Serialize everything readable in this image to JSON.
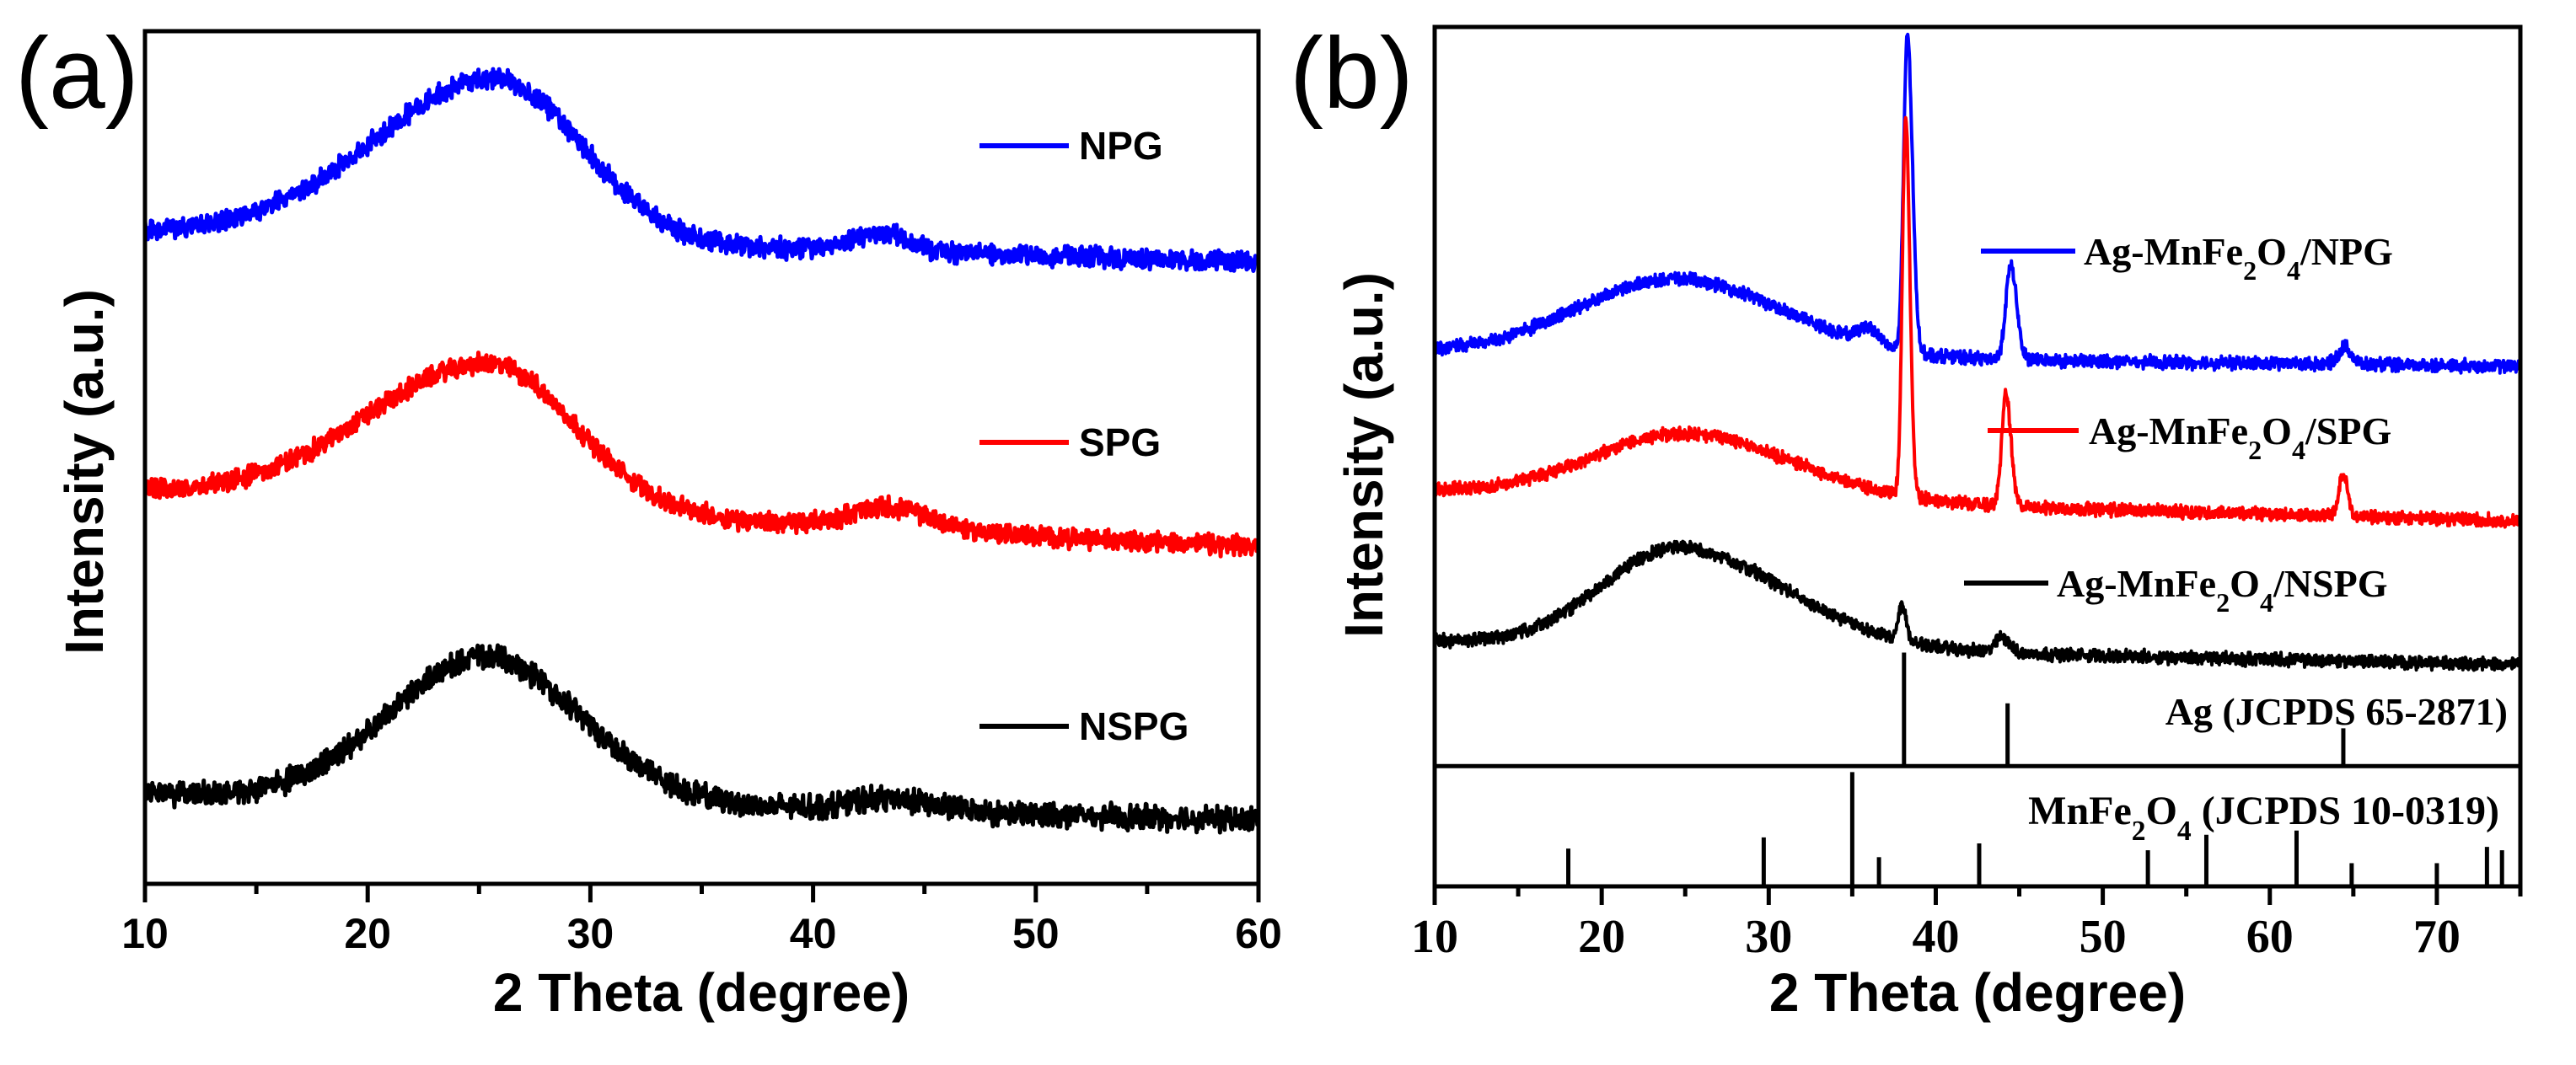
{
  "chart_data": [
    {
      "type": "line",
      "panel_label": "(a)",
      "title": "",
      "xlabel": "2 Theta (degree)",
      "ylabel": "Intensity (a.u.)",
      "xlim": [
        10,
        60
      ],
      "ylim": [
        0,
        100
      ],
      "xticks": [
        10,
        20,
        30,
        40,
        50,
        60
      ],
      "xtick_labels": [
        "10",
        "20",
        "30",
        "40",
        "50",
        "60"
      ],
      "grid": false,
      "legend_placement": "right, inline with each curve",
      "series": [
        {
          "name": "NPG",
          "color": "#0000ff",
          "baseline": [
            76.5,
            73
          ],
          "noise": 1.4,
          "seed": 11,
          "peaks": [
            {
              "center": 25.8,
              "amp": 19,
              "sigma_left": 5.5,
              "sigma_right": 3.8
            },
            {
              "center": 43,
              "amp": 2.2,
              "sigma_left": 1.2,
              "sigma_right": 1.2
            }
          ]
        },
        {
          "name": "SPG",
          "color": "#ff0000",
          "baseline": [
            46,
            39.5
          ],
          "noise": 1.4,
          "seed": 23,
          "peaks": [
            {
              "center": 25.5,
              "amp": 17,
              "sigma_left": 5.5,
              "sigma_right": 3.8
            },
            {
              "center": 43.5,
              "amp": 2.5,
              "sigma_left": 1.8,
              "sigma_right": 1.8
            }
          ]
        },
        {
          "name": "NSPG",
          "color": "#000000",
          "baseline": [
            10.5,
            7.5
          ],
          "noise": 1.7,
          "seed": 37,
          "peaks": [
            {
              "center": 25.3,
              "amp": 17,
              "sigma_left": 4.3,
              "sigma_right": 4.3
            },
            {
              "center": 43.5,
              "amp": 1.5,
              "sigma_left": 2,
              "sigma_right": 2
            }
          ]
        }
      ]
    },
    {
      "type": "line",
      "panel_label": "(b)",
      "title": "",
      "xlabel": "2 Theta (degree)",
      "ylabel": "Intensity (a.u.)",
      "xlim": [
        10,
        75
      ],
      "ylim": [
        0,
        100
      ],
      "reference_divider_y": 14,
      "xticks": [
        10,
        20,
        30,
        40,
        50,
        60,
        70
      ],
      "xtick_labels": [
        "10",
        "20",
        "30",
        "40",
        "50",
        "60",
        "70"
      ],
      "grid": false,
      "legend_placement": "right, inline with each curve",
      "series": [
        {
          "name": "Ag-MnFe2O4/NPG",
          "color": "#0000ff",
          "baseline": [
            62,
            60.5
          ],
          "noise": 0.9,
          "seed": 51,
          "peaks": [
            {
              "center": 24.5,
              "amp": 9,
              "sigma_left": 6,
              "sigma_right": 6.5
            },
            {
              "center": 36,
              "amp": 1.8,
              "sigma_left": 0.6,
              "sigma_right": 0.6
            },
            {
              "center": 38.3,
              "amp": 37,
              "sigma_left": 0.22,
              "sigma_right": 0.3
            },
            {
              "center": 44.5,
              "amp": 11,
              "sigma_left": 0.3,
              "sigma_right": 0.35
            },
            {
              "center": 64.5,
              "amp": 2,
              "sigma_left": 0.4,
              "sigma_right": 0.4
            }
          ]
        },
        {
          "name": "Ag-MnFe2O4/SPG",
          "color": "#ff0000",
          "baseline": [
            46,
            42.5
          ],
          "noise": 0.9,
          "seed": 63,
          "peaks": [
            {
              "center": 25,
              "amp": 7.5,
              "sigma_left": 5.5,
              "sigma_right": 6.5
            },
            {
              "center": 38.2,
              "amp": 44,
              "sigma_left": 0.2,
              "sigma_right": 0.25
            },
            {
              "center": 44.2,
              "amp": 13,
              "sigma_left": 0.25,
              "sigma_right": 0.3
            },
            {
              "center": 64.4,
              "amp": 5,
              "sigma_left": 0.25,
              "sigma_right": 0.25
            }
          ]
        },
        {
          "name": "Ag-MnFe2O4/NSPG",
          "color": "#000000",
          "baseline": [
            28.5,
            25.8
          ],
          "noise": 0.9,
          "seed": 79,
          "peaks": [
            {
              "center": 24.5,
              "amp": 11.5,
              "sigma_left": 4.5,
              "sigma_right": 6.5
            },
            {
              "center": 38,
              "amp": 4,
              "sigma_left": 0.22,
              "sigma_right": 0.22
            },
            {
              "center": 44,
              "amp": 1.8,
              "sigma_left": 0.4,
              "sigma_right": 0.4
            }
          ]
        }
      ],
      "references": [
        {
          "name": "Ag (JCPDS 65-2871)",
          "base": 14,
          "sticks": [
            {
              "x": 38.1,
              "y": 27.2
            },
            {
              "x": 44.3,
              "y": 21.3
            },
            {
              "x": 64.4,
              "y": 18.4
            }
          ]
        },
        {
          "name": "MnFe2O4 (JCPDS 10-0319)",
          "base": 0,
          "sticks": [
            {
              "x": 18.0,
              "y": 4.4
            },
            {
              "x": 29.7,
              "y": 5.7
            },
            {
              "x": 35.0,
              "y": 13.3
            },
            {
              "x": 36.6,
              "y": 3.4
            },
            {
              "x": 42.6,
              "y": 5.0
            },
            {
              "x": 52.7,
              "y": 4.2
            },
            {
              "x": 56.2,
              "y": 6.0
            },
            {
              "x": 61.6,
              "y": 6.5
            },
            {
              "x": 64.9,
              "y": 2.7
            },
            {
              "x": 70.0,
              "y": 2.7
            },
            {
              "x": 73.0,
              "y": 4.6
            },
            {
              "x": 73.9,
              "y": 4.2
            }
          ]
        }
      ]
    }
  ]
}
